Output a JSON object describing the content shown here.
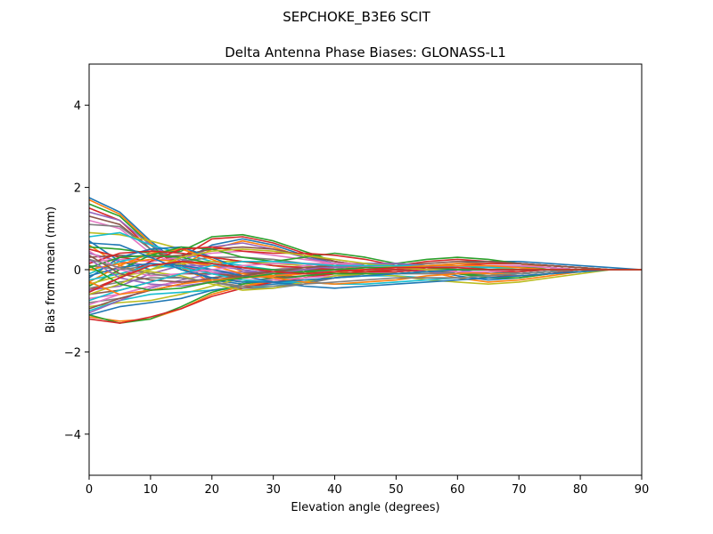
{
  "figure": {
    "suptitle": "SEPCHOKE_B3E6   SCIT"
  },
  "chart_data": {
    "type": "line",
    "title": "Delta Antenna Phase Biases: GLONASS-L1",
    "xlabel": "Elevation angle (degrees)",
    "ylabel": "Bias from mean (mm)",
    "xlim": [
      0,
      90
    ],
    "ylim": [
      -5,
      5
    ],
    "x_ticks": [
      0,
      10,
      20,
      30,
      40,
      50,
      60,
      70,
      80,
      90
    ],
    "x_tick_labels": [
      "0",
      "10",
      "20",
      "30",
      "40",
      "50",
      "60",
      "70",
      "80",
      "90"
    ],
    "y_ticks": [
      -4,
      -2,
      0,
      2,
      4
    ],
    "y_tick_labels": [
      "−4",
      "−2",
      "0",
      "2",
      "4"
    ],
    "grid": false,
    "legend": "none",
    "palette": [
      "#1f77b4",
      "#ff7f0e",
      "#2ca02c",
      "#d62728",
      "#9467bd",
      "#8c564b",
      "#e377c2",
      "#7f7f7f",
      "#bcbd22",
      "#17becf"
    ],
    "x": [
      0,
      5,
      10,
      15,
      20,
      25,
      30,
      35,
      40,
      45,
      50,
      55,
      60,
      65,
      70,
      75,
      80,
      85,
      90
    ],
    "series": [
      {
        "values": [
          1.75,
          1.4,
          0.7,
          0.1,
          -0.25,
          -0.35,
          -0.2,
          0.0,
          0.1,
          0.15,
          0.1,
          0.0,
          -0.15,
          -0.25,
          -0.2,
          -0.1,
          -0.05,
          0.0,
          0.0
        ]
      },
      {
        "values": [
          1.7,
          1.35,
          0.65,
          0.05,
          -0.3,
          -0.4,
          -0.25,
          -0.05,
          0.05,
          0.1,
          0.05,
          -0.05,
          -0.2,
          -0.3,
          -0.25,
          -0.15,
          -0.05,
          0.0,
          0.0
        ]
      },
      {
        "values": [
          1.6,
          1.3,
          0.6,
          0.0,
          -0.2,
          -0.3,
          -0.2,
          -0.05,
          0.1,
          0.15,
          0.1,
          0.0,
          -0.1,
          -0.2,
          -0.2,
          -0.1,
          -0.05,
          0.0,
          0.0
        ]
      },
      {
        "values": [
          1.5,
          1.2,
          0.5,
          0.1,
          -0.1,
          -0.2,
          -0.15,
          0.0,
          0.1,
          0.1,
          0.05,
          0.0,
          -0.1,
          -0.15,
          -0.15,
          -0.1,
          0.0,
          0.0,
          0.0
        ]
      },
      {
        "values": [
          1.4,
          1.2,
          0.6,
          0.2,
          0.0,
          -0.1,
          -0.1,
          0.0,
          0.05,
          0.1,
          0.05,
          0.0,
          -0.05,
          -0.1,
          -0.1,
          -0.05,
          0.0,
          0.0,
          0.0
        ]
      },
      {
        "values": [
          1.3,
          1.1,
          0.5,
          0.15,
          -0.1,
          -0.2,
          -0.15,
          -0.05,
          0.05,
          0.1,
          0.1,
          0.05,
          -0.05,
          -0.1,
          -0.1,
          -0.05,
          0.0,
          0.0,
          0.0
        ]
      },
      {
        "values": [
          1.2,
          1.0,
          0.4,
          0.1,
          -0.05,
          -0.15,
          -0.1,
          0.0,
          0.05,
          0.05,
          0.0,
          -0.05,
          -0.1,
          -0.1,
          -0.1,
          -0.05,
          0.0,
          0.0,
          0.0
        ]
      },
      {
        "values": [
          1.1,
          1.05,
          0.5,
          0.25,
          0.1,
          0.05,
          0.0,
          0.0,
          0.0,
          0.0,
          0.0,
          -0.05,
          -0.1,
          -0.1,
          -0.05,
          0.0,
          0.0,
          0.0,
          0.0
        ]
      },
      {
        "values": [
          0.9,
          0.85,
          0.7,
          0.5,
          0.3,
          0.2,
          0.1,
          0.0,
          -0.05,
          -0.1,
          -0.1,
          -0.05,
          0.0,
          0.05,
          0.05,
          0.05,
          0.0,
          0.0,
          0.0
        ]
      },
      {
        "values": [
          0.8,
          0.9,
          0.6,
          0.4,
          0.2,
          0.1,
          0.0,
          -0.1,
          -0.1,
          -0.1,
          -0.05,
          0.0,
          0.05,
          0.05,
          0.05,
          0.0,
          0.0,
          0.0,
          0.0
        ]
      },
      {
        "values": [
          0.7,
          0.2,
          0.0,
          0.2,
          0.6,
          0.75,
          0.6,
          0.35,
          0.15,
          0.05,
          0.05,
          0.1,
          0.15,
          0.2,
          0.2,
          0.15,
          0.1,
          0.05,
          0.0
        ]
      },
      {
        "values": [
          0.6,
          0.1,
          -0.1,
          0.1,
          0.5,
          0.7,
          0.55,
          0.3,
          0.1,
          0.0,
          0.05,
          0.1,
          0.15,
          0.15,
          0.15,
          0.1,
          0.05,
          0.0,
          0.0
        ]
      },
      {
        "values": [
          0.55,
          0.5,
          0.4,
          0.45,
          0.8,
          0.85,
          0.7,
          0.45,
          0.2,
          0.1,
          0.15,
          0.25,
          0.3,
          0.25,
          0.15,
          0.1,
          0.05,
          0.0,
          0.0
        ]
      },
      {
        "values": [
          0.5,
          0.3,
          0.2,
          0.3,
          0.75,
          0.8,
          0.65,
          0.4,
          0.2,
          0.1,
          0.1,
          0.2,
          0.25,
          0.2,
          0.15,
          0.1,
          0.05,
          0.0,
          0.0
        ]
      },
      {
        "values": [
          0.4,
          0.2,
          0.1,
          0.2,
          0.55,
          0.65,
          0.5,
          0.3,
          0.15,
          0.05,
          0.05,
          0.1,
          0.1,
          0.1,
          0.1,
          0.05,
          0.0,
          0.0,
          0.0
        ]
      },
      {
        "values": [
          0.3,
          0.35,
          0.3,
          0.35,
          0.5,
          0.55,
          0.5,
          0.35,
          0.2,
          0.1,
          0.05,
          0.05,
          0.1,
          0.1,
          0.1,
          0.05,
          0.0,
          0.0,
          0.0
        ]
      },
      {
        "values": [
          0.2,
          0.25,
          0.2,
          0.3,
          0.4,
          0.45,
          0.35,
          0.25,
          0.15,
          0.05,
          0.0,
          0.0,
          0.05,
          0.05,
          0.05,
          0.05,
          0.0,
          0.0,
          0.0
        ]
      },
      {
        "values": [
          0.1,
          0.0,
          0.1,
          0.2,
          0.3,
          0.3,
          0.25,
          0.15,
          0.05,
          -0.05,
          -0.05,
          0.0,
          0.0,
          0.05,
          0.05,
          0.05,
          0.0,
          0.0,
          0.0
        ]
      },
      {
        "values": [
          0.0,
          -0.1,
          0.0,
          0.15,
          0.2,
          0.2,
          0.15,
          0.1,
          0.0,
          -0.05,
          -0.1,
          -0.05,
          0.0,
          0.0,
          0.05,
          0.0,
          0.0,
          0.0,
          0.0
        ]
      },
      {
        "values": [
          -0.1,
          0.2,
          0.35,
          0.3,
          0.15,
          0.05,
          0.0,
          0.0,
          0.05,
          0.1,
          0.05,
          0.0,
          -0.05,
          -0.1,
          -0.05,
          0.0,
          0.0,
          0.0,
          0.0
        ]
      },
      {
        "values": [
          -0.2,
          0.3,
          0.5,
          0.55,
          0.3,
          0.0,
          -0.1,
          -0.05,
          0.1,
          0.15,
          0.15,
          0.1,
          0.0,
          -0.1,
          -0.1,
          -0.05,
          0.0,
          0.0,
          0.0
        ]
      },
      {
        "values": [
          -0.3,
          0.1,
          0.4,
          0.5,
          0.25,
          -0.05,
          -0.15,
          -0.1,
          0.05,
          0.1,
          0.1,
          0.05,
          -0.05,
          -0.1,
          -0.1,
          -0.05,
          0.0,
          0.0,
          0.0
        ]
      },
      {
        "values": [
          -0.4,
          0.0,
          0.35,
          0.55,
          0.5,
          0.3,
          0.2,
          0.3,
          0.4,
          0.3,
          0.15,
          0.0,
          -0.1,
          -0.15,
          -0.1,
          -0.05,
          0.0,
          0.0,
          0.0
        ]
      },
      {
        "values": [
          -0.5,
          -0.2,
          0.2,
          0.5,
          0.55,
          0.45,
          0.4,
          0.4,
          0.35,
          0.25,
          0.1,
          0.0,
          -0.05,
          -0.05,
          -0.05,
          0.0,
          0.0,
          0.0,
          0.0
        ]
      },
      {
        "values": [
          -0.5,
          -0.4,
          -0.1,
          0.1,
          0.1,
          0.0,
          -0.1,
          -0.1,
          0.0,
          0.05,
          0.0,
          -0.05,
          -0.1,
          -0.05,
          0.0,
          0.0,
          0.0,
          0.0,
          0.0
        ]
      },
      {
        "values": [
          -0.6,
          -0.5,
          -0.3,
          -0.1,
          -0.1,
          -0.15,
          -0.2,
          -0.15,
          -0.05,
          0.0,
          0.0,
          0.0,
          0.0,
          0.0,
          0.0,
          0.0,
          0.0,
          0.0,
          0.0
        ]
      },
      {
        "values": [
          -0.7,
          -0.6,
          -0.4,
          -0.3,
          -0.2,
          -0.1,
          0.0,
          0.1,
          0.15,
          0.15,
          0.1,
          0.05,
          0.0,
          0.0,
          0.0,
          0.0,
          0.0,
          0.0,
          0.0
        ]
      },
      {
        "values": [
          -0.8,
          -0.7,
          -0.5,
          -0.35,
          -0.2,
          -0.1,
          0.0,
          0.05,
          0.1,
          0.1,
          0.05,
          0.0,
          0.0,
          0.0,
          0.0,
          0.0,
          0.0,
          0.0,
          0.0
        ]
      },
      {
        "values": [
          -0.9,
          -0.8,
          -0.75,
          -0.6,
          -0.4,
          -0.2,
          -0.1,
          0.0,
          0.1,
          0.15,
          0.1,
          0.05,
          0.05,
          0.05,
          0.05,
          0.05,
          0.0,
          0.0,
          0.0
        ]
      },
      {
        "values": [
          -1.0,
          -0.75,
          -0.6,
          -0.55,
          -0.5,
          -0.45,
          -0.4,
          -0.3,
          -0.2,
          -0.15,
          -0.15,
          -0.2,
          -0.2,
          -0.15,
          -0.1,
          -0.05,
          0.0,
          0.0,
          0.0
        ]
      },
      {
        "values": [
          -1.1,
          -0.9,
          -0.8,
          -0.7,
          -0.5,
          -0.4,
          -0.35,
          -0.3,
          -0.2,
          -0.1,
          -0.05,
          0.0,
          0.05,
          0.05,
          0.05,
          0.05,
          0.0,
          0.0,
          0.0
        ]
      },
      {
        "values": [
          -1.15,
          -1.25,
          -1.2,
          -0.95,
          -0.6,
          -0.4,
          -0.3,
          -0.2,
          -0.1,
          -0.05,
          0.0,
          0.05,
          0.1,
          0.1,
          0.1,
          0.1,
          0.05,
          0.0,
          0.0
        ]
      },
      {
        "values": [
          -1.1,
          -1.3,
          -1.2,
          -0.9,
          -0.55,
          -0.35,
          -0.25,
          -0.15,
          -0.1,
          -0.05,
          0.0,
          0.05,
          0.05,
          0.05,
          0.05,
          0.05,
          0.0,
          0.0,
          0.0
        ]
      },
      {
        "values": [
          -1.2,
          -1.3,
          -1.15,
          -0.95,
          -0.65,
          -0.45,
          -0.3,
          -0.2,
          -0.1,
          -0.05,
          0.0,
          0.05,
          0.1,
          0.15,
          0.15,
          0.1,
          0.05,
          0.0,
          0.0
        ]
      },
      {
        "values": [
          -1.05,
          -0.75,
          -0.45,
          -0.25,
          -0.1,
          -0.05,
          -0.05,
          0.0,
          0.05,
          0.1,
          0.1,
          0.1,
          0.1,
          0.1,
          0.1,
          0.05,
          0.0,
          0.0,
          0.0
        ]
      },
      {
        "values": [
          -0.95,
          -0.7,
          -0.5,
          -0.35,
          -0.2,
          -0.1,
          -0.05,
          0.0,
          0.0,
          0.05,
          0.1,
          0.15,
          0.2,
          0.2,
          0.15,
          0.1,
          0.05,
          0.0,
          0.0
        ]
      },
      {
        "values": [
          -0.85,
          -0.6,
          -0.4,
          -0.3,
          -0.25,
          -0.25,
          -0.25,
          -0.2,
          -0.15,
          -0.1,
          -0.05,
          0.0,
          0.05,
          0.1,
          0.1,
          0.05,
          0.0,
          0.0,
          0.0
        ]
      },
      {
        "values": [
          -0.45,
          -0.3,
          -0.2,
          -0.2,
          -0.3,
          -0.45,
          -0.45,
          -0.35,
          -0.2,
          -0.1,
          -0.1,
          -0.1,
          -0.1,
          -0.05,
          0.0,
          0.0,
          0.0,
          0.0,
          0.0
        ]
      },
      {
        "values": [
          -0.35,
          -0.15,
          -0.05,
          -0.15,
          -0.35,
          -0.5,
          -0.45,
          -0.3,
          -0.15,
          -0.1,
          -0.15,
          -0.25,
          -0.3,
          -0.35,
          -0.3,
          -0.2,
          -0.1,
          0.0,
          0.0
        ]
      },
      {
        "values": [
          -0.25,
          -0.1,
          0.1,
          0.05,
          -0.1,
          -0.25,
          -0.3,
          -0.3,
          -0.35,
          -0.35,
          -0.3,
          -0.25,
          -0.2,
          -0.15,
          -0.1,
          -0.05,
          0.0,
          0.0,
          0.0
        ]
      },
      {
        "values": [
          -0.15,
          0.05,
          0.15,
          0.1,
          0.0,
          -0.15,
          -0.3,
          -0.4,
          -0.45,
          -0.4,
          -0.35,
          -0.3,
          -0.25,
          -0.2,
          -0.15,
          -0.1,
          -0.05,
          0.0,
          0.0
        ]
      },
      {
        "values": [
          0.0,
          0.15,
          0.25,
          0.2,
          0.1,
          -0.1,
          -0.2,
          -0.3,
          -0.35,
          -0.3,
          -0.25,
          -0.15,
          -0.1,
          -0.05,
          0.0,
          0.0,
          0.0,
          0.0,
          0.0
        ]
      },
      {
        "values": [
          0.05,
          0.3,
          0.35,
          0.3,
          0.15,
          0.05,
          0.0,
          -0.05,
          -0.1,
          -0.1,
          -0.1,
          -0.05,
          0.0,
          0.0,
          0.0,
          0.0,
          0.0,
          0.0,
          0.0
        ]
      },
      {
        "values": [
          0.15,
          0.4,
          0.45,
          0.4,
          0.3,
          0.2,
          0.1,
          0.05,
          0.0,
          -0.05,
          -0.05,
          0.0,
          0.0,
          0.0,
          0.0,
          0.0,
          0.0,
          0.0,
          0.0
        ]
      },
      {
        "values": [
          0.25,
          -0.2,
          -0.35,
          -0.4,
          -0.3,
          -0.2,
          -0.1,
          0.0,
          0.1,
          0.15,
          0.15,
          0.1,
          0.05,
          0.0,
          0.0,
          0.0,
          0.0,
          0.0,
          0.0
        ]
      },
      {
        "values": [
          0.35,
          -0.1,
          -0.25,
          -0.3,
          -0.25,
          -0.15,
          -0.05,
          0.05,
          0.1,
          0.1,
          0.05,
          0.0,
          0.0,
          0.0,
          0.0,
          0.0,
          0.0,
          0.0,
          0.0
        ]
      },
      {
        "values": [
          0.45,
          0.0,
          -0.15,
          -0.1,
          0.0,
          0.1,
          0.15,
          0.15,
          0.15,
          0.1,
          0.05,
          0.0,
          -0.05,
          -0.05,
          0.0,
          0.0,
          0.0,
          0.0,
          0.0
        ]
      },
      {
        "values": [
          0.25,
          0.05,
          -0.1,
          -0.2,
          -0.3,
          -0.4,
          -0.4,
          -0.35,
          -0.3,
          -0.25,
          -0.2,
          -0.2,
          -0.2,
          -0.15,
          -0.1,
          -0.05,
          0.0,
          0.0,
          0.0
        ]
      },
      {
        "values": [
          -0.6,
          -0.35,
          0.0,
          0.3,
          0.45,
          0.5,
          0.45,
          0.35,
          0.25,
          0.15,
          0.05,
          0.0,
          0.0,
          0.0,
          0.0,
          0.0,
          0.0,
          0.0,
          0.0
        ]
      },
      {
        "values": [
          -0.75,
          -0.5,
          -0.3,
          -0.1,
          0.1,
          0.2,
          0.2,
          0.15,
          0.1,
          0.1,
          0.1,
          0.1,
          0.1,
          0.05,
          0.05,
          0.0,
          0.0,
          0.0,
          0.0
        ]
      },
      {
        "values": [
          0.65,
          0.6,
          0.3,
          0.0,
          -0.2,
          -0.3,
          -0.3,
          -0.25,
          -0.2,
          -0.15,
          -0.1,
          -0.05,
          0.0,
          0.0,
          0.0,
          0.0,
          0.0,
          0.0,
          0.0
        ]
      },
      {
        "values": [
          -0.3,
          -0.6,
          -0.5,
          -0.35,
          -0.25,
          -0.2,
          -0.15,
          -0.1,
          -0.05,
          0.0,
          0.05,
          0.1,
          0.1,
          0.1,
          0.05,
          0.0,
          0.0,
          0.0,
          0.0
        ]
      },
      {
        "values": [
          0.1,
          -0.35,
          -0.5,
          -0.45,
          -0.3,
          -0.2,
          -0.1,
          -0.05,
          0.0,
          0.05,
          0.05,
          0.05,
          0.0,
          0.0,
          0.0,
          0.0,
          0.0,
          0.0,
          0.0
        ]
      },
      {
        "values": [
          -0.55,
          -0.2,
          0.1,
          0.2,
          0.15,
          0.05,
          -0.05,
          -0.1,
          -0.05,
          0.0,
          0.05,
          0.05,
          0.05,
          0.0,
          0.0,
          0.0,
          0.0,
          0.0,
          0.0
        ]
      }
    ]
  }
}
